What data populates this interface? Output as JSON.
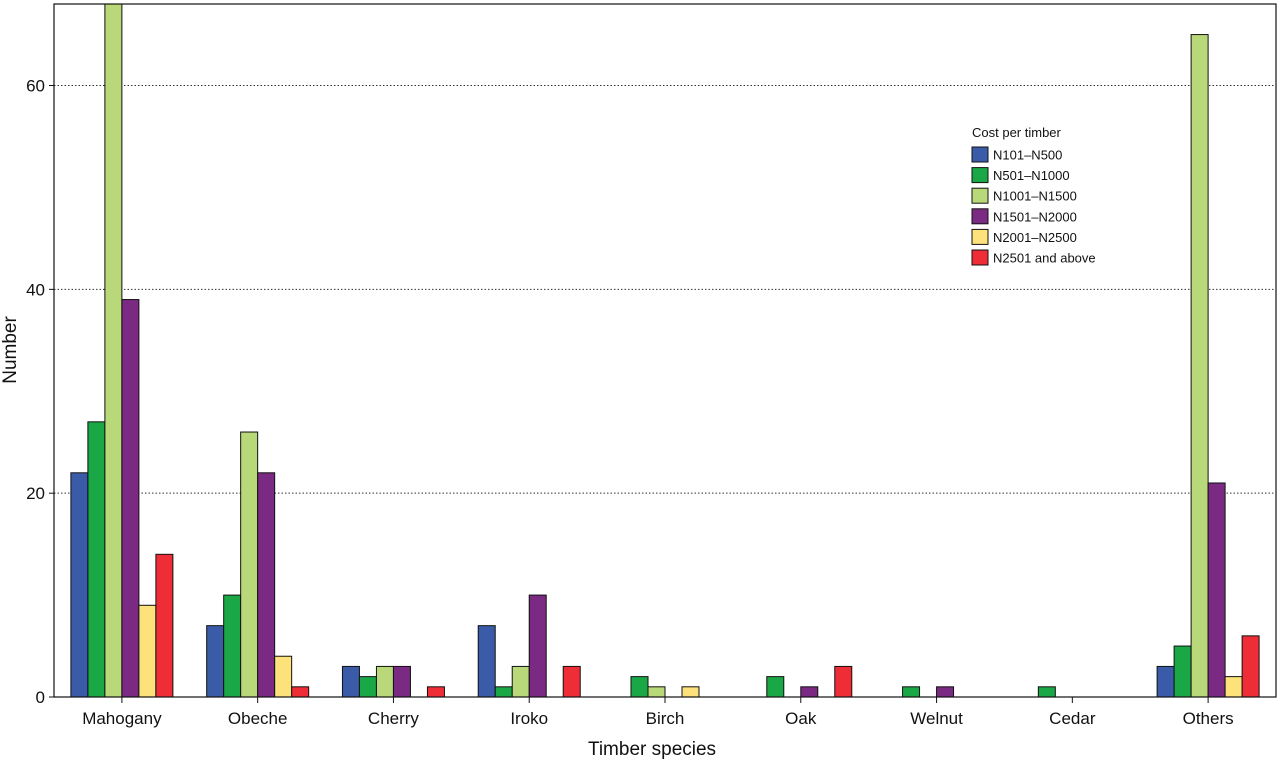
{
  "chart_data": {
    "type": "bar",
    "xlabel": "Timber species",
    "ylabel": "Number",
    "ylim": [
      0,
      68
    ],
    "yticks": [
      0,
      20,
      40,
      60
    ],
    "grid": "horizontal-dotted",
    "legend_title": "Cost per timber",
    "legend_position": "top-right",
    "categories": [
      "Mahogany",
      "Obeche",
      "Cherry",
      "Iroko",
      "Birch",
      "Oak",
      "Welnut",
      "Cedar",
      "Others"
    ],
    "series": [
      {
        "name": "N101–N500",
        "color": "#3a5ba8",
        "values": [
          22,
          7,
          3,
          7,
          0,
          0,
          0,
          0,
          3
        ]
      },
      {
        "name": "N501–N1000",
        "color": "#1aa745",
        "values": [
          27,
          10,
          2,
          1,
          2,
          2,
          1,
          1,
          5
        ]
      },
      {
        "name": "N1001–N1500",
        "color": "#b9d879",
        "values": [
          68,
          26,
          3,
          3,
          1,
          0,
          0,
          0,
          65
        ]
      },
      {
        "name": "N1501–N2000",
        "color": "#7a2a82",
        "values": [
          39,
          22,
          3,
          10,
          0,
          1,
          1,
          0,
          21
        ]
      },
      {
        "name": "N2001–N2500",
        "color": "#fde17a",
        "values": [
          9,
          4,
          0,
          0,
          1,
          0,
          0,
          0,
          2
        ]
      },
      {
        "name": "N2501 and above",
        "color": "#ee2d37",
        "values": [
          14,
          1,
          1,
          3,
          0,
          3,
          0,
          0,
          6
        ]
      }
    ]
  }
}
